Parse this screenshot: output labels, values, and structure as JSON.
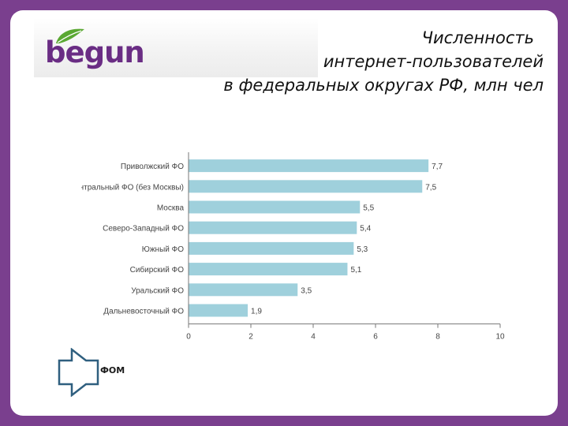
{
  "brand": {
    "logo_text": "begun"
  },
  "title": {
    "line1": "Численность",
    "line2": "интернет-пользователей",
    "line3": "в федеральных округах РФ, млн чел"
  },
  "source": {
    "label": "ФОМ"
  },
  "colors": {
    "bar": "#9fd0dc",
    "frame": "#7a3f8e",
    "logo": "#6a2d84",
    "leaf": "#5aa832",
    "arrow": "#2f5f7f"
  },
  "chart_data": {
    "type": "bar",
    "orientation": "horizontal",
    "categories": [
      "Приволжский ФО",
      "Центральный ФО (без Москвы)",
      "Москва",
      "Северо-Западный ФО",
      "Южный ФО",
      "Сибирский ФО",
      "Уральский ФО",
      "Дальневосточный ФО"
    ],
    "values": [
      7.7,
      7.5,
      5.5,
      5.4,
      5.3,
      5.1,
      3.5,
      1.9
    ],
    "value_labels": [
      "7,7",
      "7,5",
      "5,5",
      "5,4",
      "5,3",
      "5,1",
      "3,5",
      "1,9"
    ],
    "xlim": [
      0,
      10
    ],
    "xticks": [
      0,
      2,
      4,
      6,
      8,
      10
    ],
    "xlabel": "",
    "ylabel": "",
    "grid": false,
    "legend": "none"
  }
}
